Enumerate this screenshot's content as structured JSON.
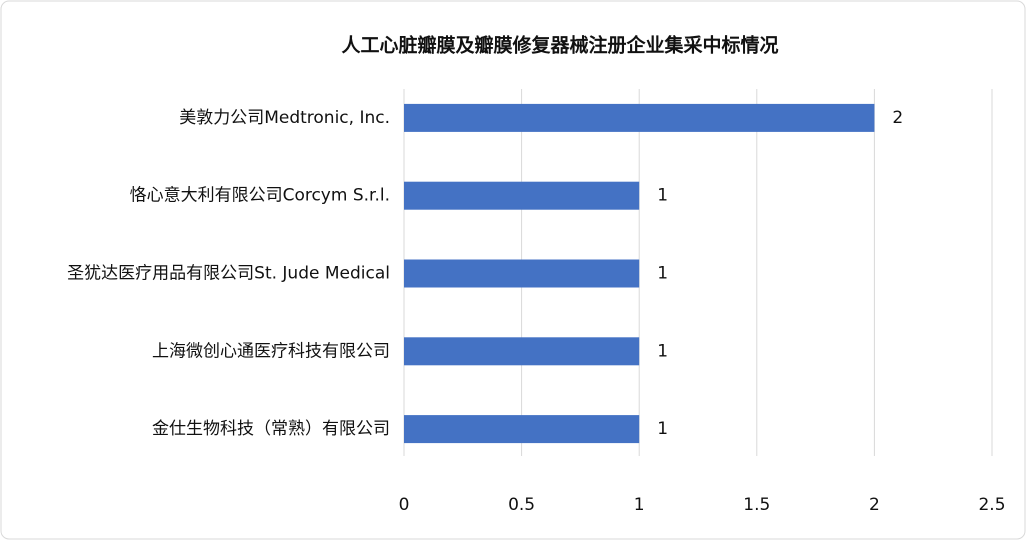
{
  "chart_data": {
    "type": "bar",
    "orientation": "horizontal",
    "title": "人工心脏瓣膜及瓣膜修复器械注册企业集采中标情况",
    "categories": [
      "美敦力公司Medtronic, Inc.",
      "恪心意大利有限公司Corcym S.r.l.",
      "圣犹达医疗用品有限公司St. Jude Medical",
      "上海微创心通医疗科技有限公司",
      "金仕生物科技（常熟）有限公司"
    ],
    "values": [
      2,
      1,
      1,
      1,
      1
    ],
    "color": "#4472c4",
    "xlim": [
      0,
      2.5
    ],
    "xticks": [
      0,
      0.5,
      1,
      1.5,
      2,
      2.5
    ],
    "grid": true
  }
}
